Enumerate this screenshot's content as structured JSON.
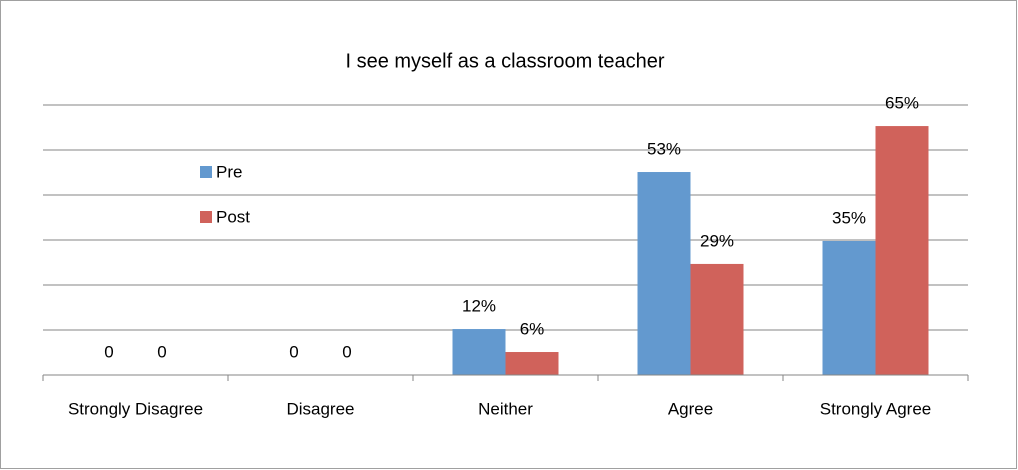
{
  "chart_data": {
    "type": "bar",
    "title": "I see myself as a classroom teacher",
    "categories": [
      "Strongly Disagree",
      "Disagree",
      "Neither",
      "Agree",
      "Strongly Agree"
    ],
    "series": [
      {
        "name": "Pre",
        "color": "#6399cf",
        "values": [
          0,
          0,
          12,
          53,
          35
        ],
        "value_labels": [
          "0",
          "0",
          "12%",
          "53%",
          "35%"
        ]
      },
      {
        "name": "Post",
        "color": "#d0625b",
        "values": [
          0,
          0,
          6,
          29,
          65
        ],
        "value_labels": [
          "0",
          "0",
          "6%",
          "29%",
          "65%"
        ]
      }
    ],
    "ylim": [
      0,
      70.5
    ],
    "yticks": [
      0,
      11.75,
      23.5,
      35.25,
      47,
      58.75,
      70.5
    ],
    "grid": true,
    "legend": "left"
  }
}
